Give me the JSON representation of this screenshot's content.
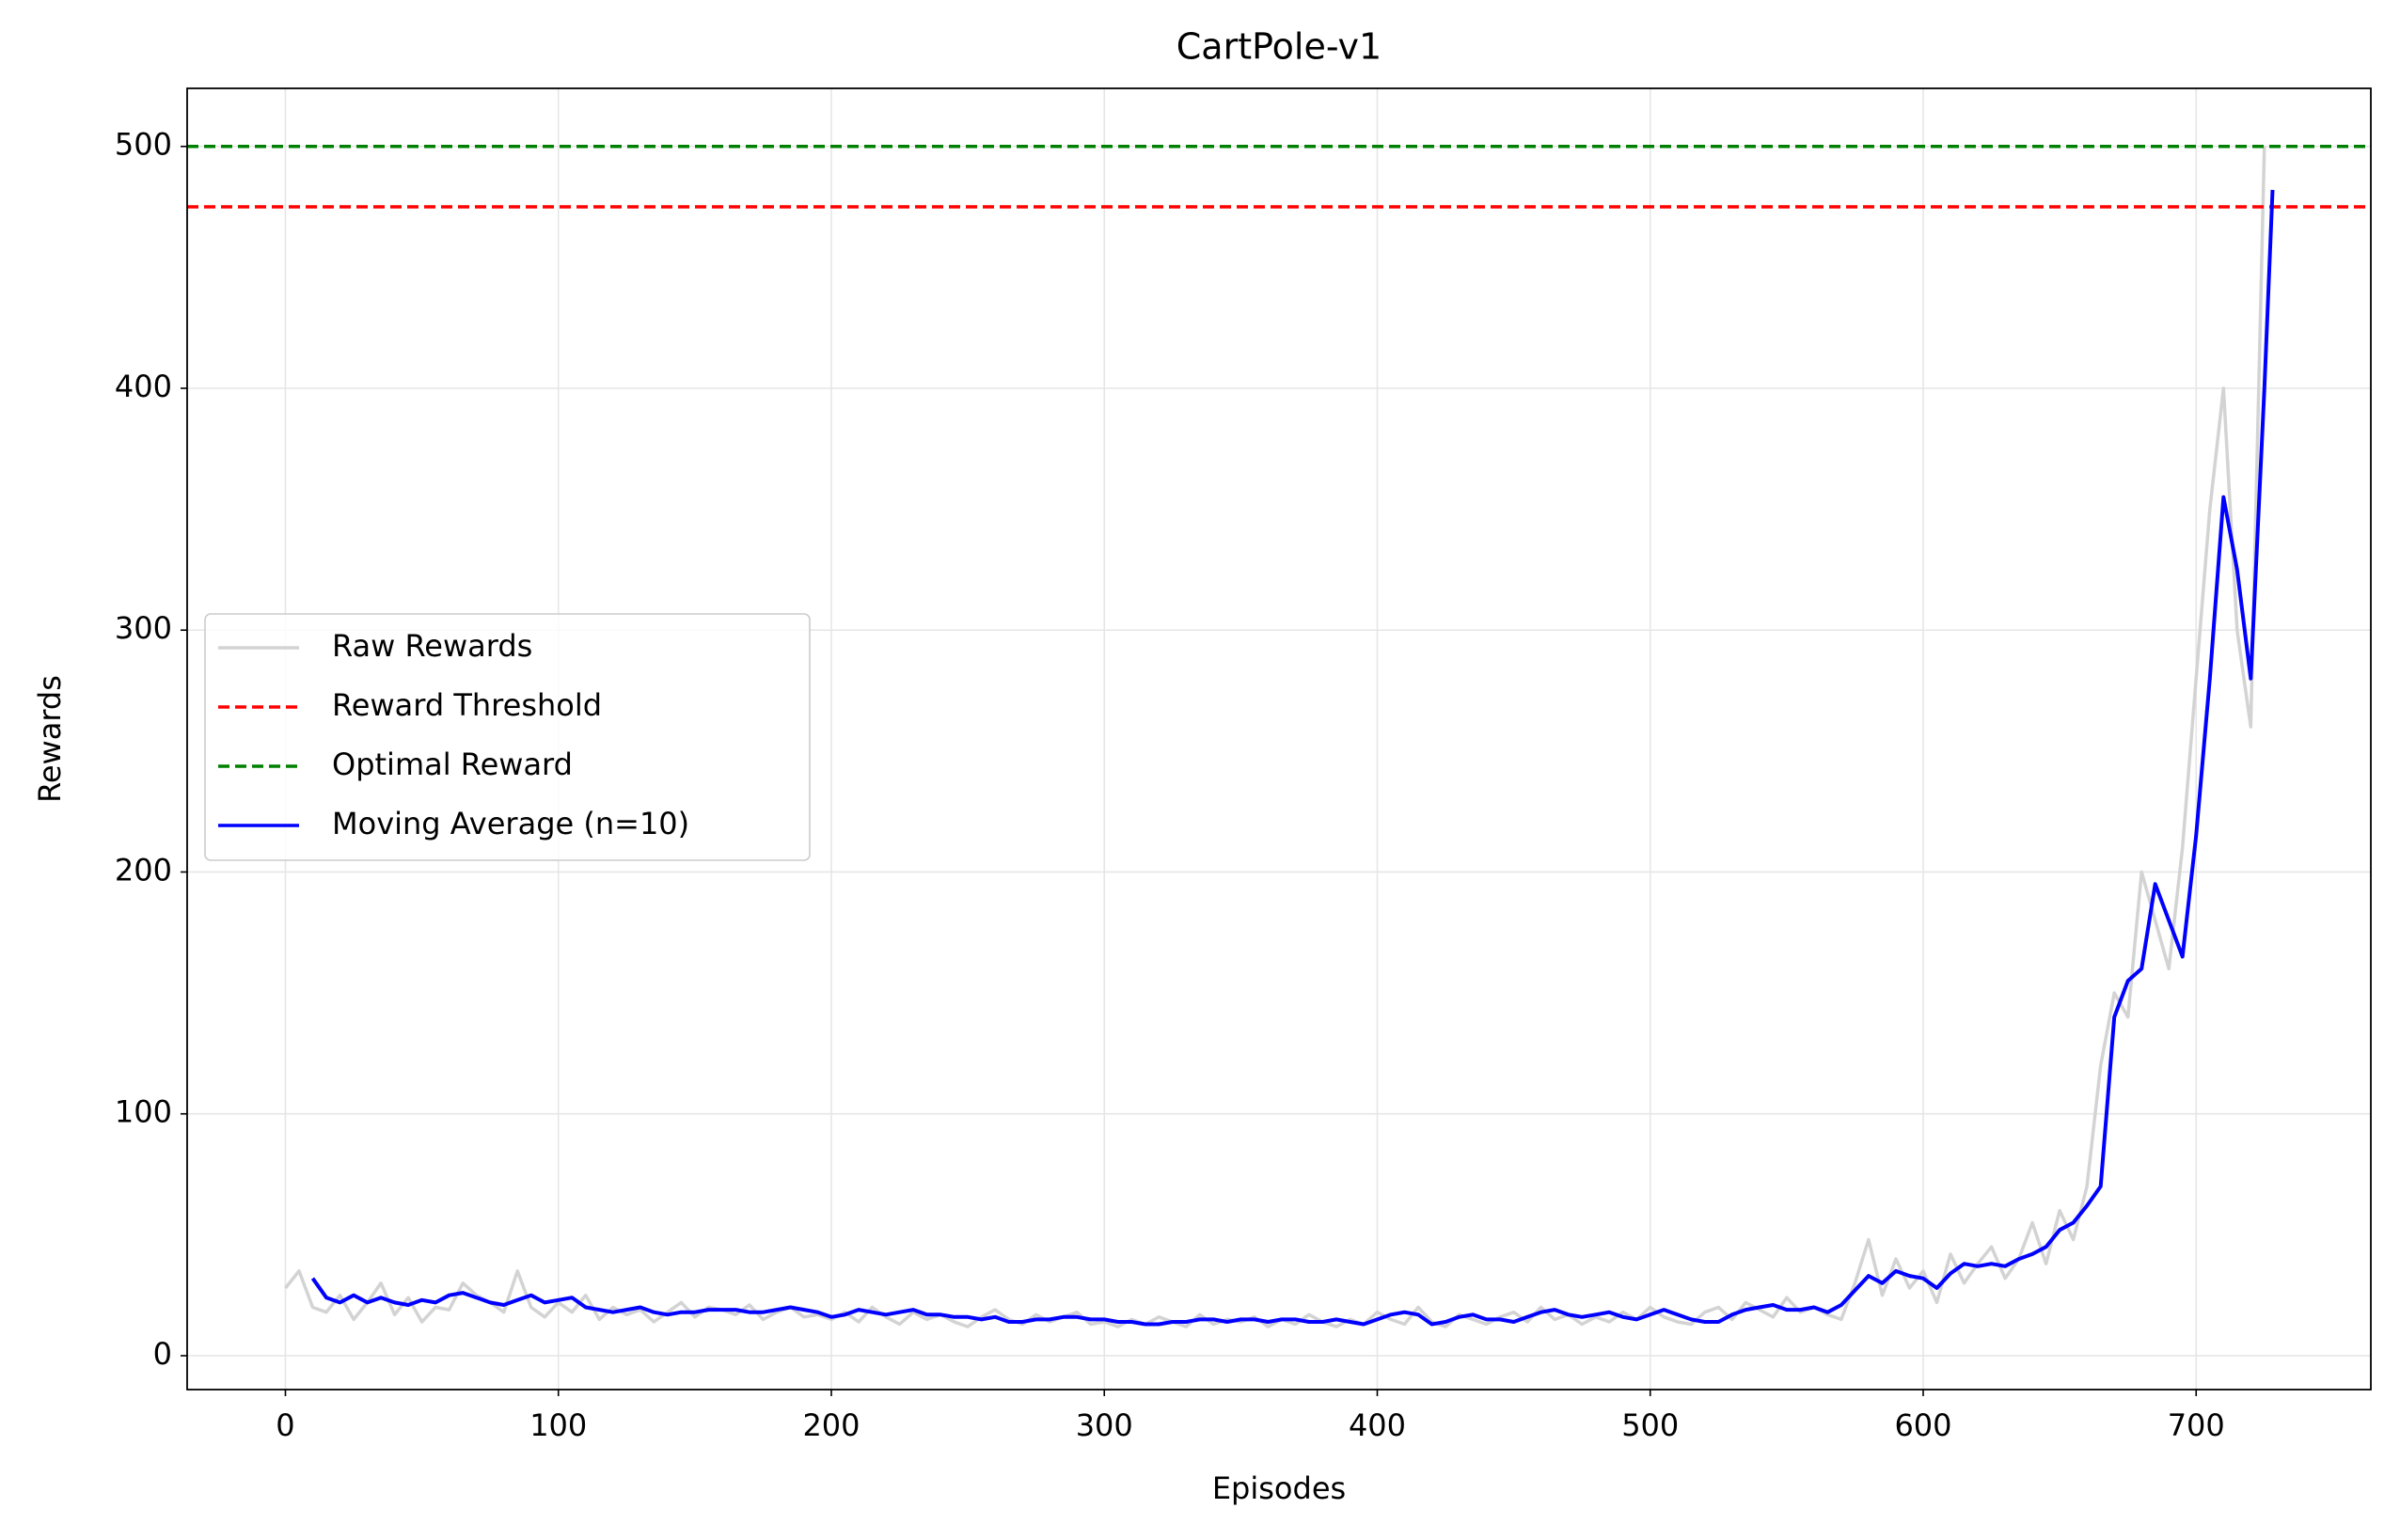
{
  "chart_data": {
    "type": "line",
    "title": "CartPole-v1",
    "x_label": "Episodes",
    "y_label": "Rewards",
    "xlim": [
      -36,
      764
    ],
    "ylim": [
      -14,
      524
    ],
    "xticks": [
      0,
      100,
      200,
      300,
      400,
      500,
      600,
      700
    ],
    "yticks": [
      0,
      100,
      200,
      300,
      400,
      500
    ],
    "grid": true,
    "legend": "center left",
    "series": [
      {
        "name": "Raw Rewards",
        "color": "#d3d3d3",
        "x": [
          0,
          5,
          10,
          15,
          20,
          25,
          30,
          35,
          40,
          45,
          50,
          55,
          60,
          65,
          70,
          75,
          80,
          85,
          90,
          95,
          100,
          105,
          110,
          115,
          120,
          125,
          130,
          135,
          140,
          145,
          150,
          155,
          160,
          165,
          170,
          175,
          180,
          185,
          190,
          195,
          200,
          205,
          210,
          215,
          220,
          225,
          230,
          235,
          240,
          245,
          250,
          255,
          260,
          265,
          270,
          275,
          280,
          285,
          290,
          295,
          300,
          305,
          310,
          315,
          320,
          325,
          330,
          335,
          340,
          345,
          350,
          355,
          360,
          365,
          370,
          375,
          380,
          385,
          390,
          395,
          400,
          405,
          410,
          415,
          420,
          425,
          430,
          435,
          440,
          445,
          450,
          455,
          460,
          465,
          470,
          475,
          480,
          485,
          490,
          495,
          500,
          505,
          510,
          515,
          520,
          525,
          530,
          535,
          540,
          545,
          550,
          555,
          560,
          565,
          570,
          575,
          580,
          585,
          590,
          595,
          600,
          605,
          610,
          615,
          620,
          625,
          630,
          635,
          640,
          645,
          650,
          655,
          660,
          665,
          670,
          675,
          680,
          685,
          690,
          695,
          700,
          705,
          710,
          715,
          720,
          725
        ],
        "values": [
          28,
          35,
          20,
          18,
          25,
          15,
          22,
          30,
          17,
          24,
          14,
          20,
          19,
          30,
          25,
          22,
          18,
          35,
          20,
          16,
          22,
          18,
          25,
          15,
          20,
          17,
          19,
          14,
          18,
          22,
          16,
          20,
          19,
          17,
          21,
          15,
          18,
          20,
          16,
          17,
          15,
          18,
          14,
          20,
          16,
          13,
          18,
          15,
          17,
          14,
          12,
          16,
          19,
          15,
          13,
          17,
          14,
          16,
          18,
          13,
          14,
          12,
          15,
          13,
          16,
          14,
          12,
          17,
          13,
          15,
          14,
          16,
          12,
          15,
          13,
          17,
          14,
          12,
          15,
          13,
          18,
          15,
          13,
          20,
          14,
          12,
          17,
          15,
          13,
          16,
          18,
          14,
          20,
          15,
          17,
          13,
          16,
          14,
          18,
          15,
          20,
          16,
          14,
          13,
          18,
          20,
          15,
          22,
          19,
          16,
          24,
          18,
          20,
          17,
          15,
          30,
          48,
          25,
          40,
          28,
          35,
          22,
          42,
          30,
          38,
          45,
          32,
          40,
          55,
          38,
          60,
          48,
          70,
          120,
          150,
          140,
          200,
          180,
          160,
          210,
          280,
          350,
          400,
          300,
          260,
          500
        ]
      },
      {
        "name": "Moving Average (n=10)",
        "color": "#0000ff",
        "x": [
          10,
          15,
          20,
          25,
          30,
          35,
          40,
          45,
          50,
          55,
          60,
          65,
          70,
          75,
          80,
          85,
          90,
          95,
          100,
          105,
          110,
          115,
          120,
          125,
          130,
          135,
          140,
          145,
          150,
          155,
          160,
          165,
          170,
          175,
          180,
          185,
          190,
          195,
          200,
          205,
          210,
          215,
          220,
          225,
          230,
          235,
          240,
          245,
          250,
          255,
          260,
          265,
          270,
          275,
          280,
          285,
          290,
          295,
          300,
          305,
          310,
          315,
          320,
          325,
          330,
          335,
          340,
          345,
          350,
          355,
          360,
          365,
          370,
          375,
          380,
          385,
          390,
          395,
          400,
          405,
          410,
          415,
          420,
          425,
          430,
          435,
          440,
          445,
          450,
          455,
          460,
          465,
          470,
          475,
          480,
          485,
          490,
          495,
          500,
          505,
          510,
          515,
          520,
          525,
          530,
          535,
          540,
          545,
          550,
          555,
          560,
          565,
          570,
          575,
          580,
          585,
          590,
          595,
          600,
          605,
          610,
          615,
          620,
          625,
          630,
          635,
          640,
          645,
          650,
          655,
          660,
          665,
          670,
          675,
          680,
          685,
          690,
          695,
          700,
          705,
          710,
          715,
          720,
          725,
          728
        ],
        "values": [
          32,
          24,
          22,
          25,
          22,
          24,
          22,
          21,
          23,
          22,
          25,
          26,
          24,
          22,
          21,
          23,
          25,
          22,
          23,
          24,
          20,
          19,
          18,
          19,
          20,
          18,
          17,
          18,
          18,
          19,
          19,
          19,
          18,
          18,
          19,
          20,
          19,
          18,
          16,
          17,
          19,
          18,
          17,
          18,
          19,
          17,
          17,
          16,
          16,
          15,
          16,
          14,
          14,
          15,
          15,
          16,
          16,
          15,
          15,
          14,
          14,
          13,
          13,
          14,
          14,
          15,
          15,
          14,
          15,
          15,
          14,
          15,
          15,
          14,
          14,
          15,
          14,
          13,
          15,
          17,
          18,
          17,
          13,
          14,
          16,
          17,
          15,
          15,
          14,
          16,
          18,
          19,
          17,
          16,
          17,
          18,
          16,
          15,
          17,
          19,
          17,
          15,
          14,
          14,
          17,
          19,
          20,
          21,
          19,
          19,
          20,
          18,
          21,
          27,
          33,
          30,
          35,
          33,
          32,
          28,
          34,
          38,
          37,
          38,
          37,
          40,
          42,
          45,
          52,
          55,
          62,
          70,
          140,
          155,
          160,
          195,
          180,
          165,
          215,
          280,
          355,
          325,
          280,
          400,
          482
        ]
      }
    ],
    "hlines": [
      {
        "name": "Reward Threshold",
        "value": 475,
        "color": "#ff0000",
        "style": "dashed"
      },
      {
        "name": "Optimal Reward",
        "value": 500,
        "color": "#008000",
        "style": "dashed"
      }
    ]
  }
}
